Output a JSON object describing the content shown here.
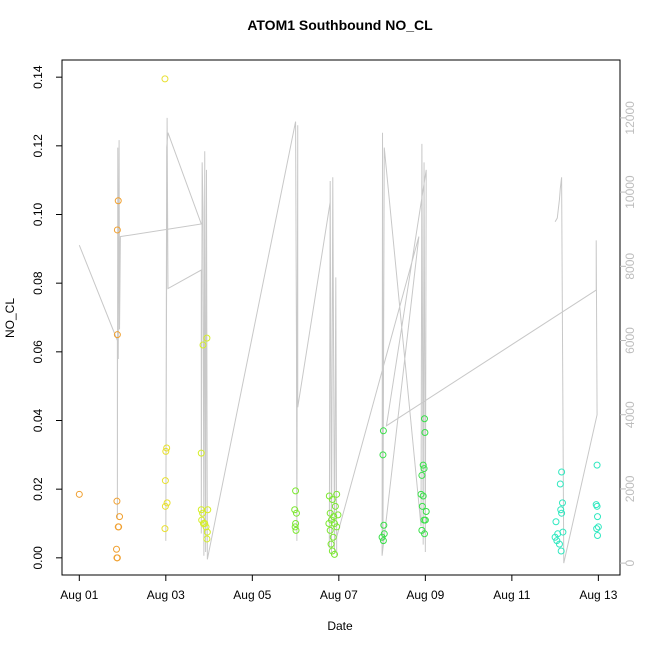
{
  "chart_data": {
    "type": "scatter",
    "title": "ATOM1 Southbound NO_CL",
    "x_label": "Date",
    "y_label": "NO_CL",
    "xlim": [
      0.6,
      13.5
    ],
    "xticks": [
      {
        "value": 1,
        "label": "Aug 01"
      },
      {
        "value": 3,
        "label": "Aug 03"
      },
      {
        "value": 5,
        "label": "Aug 05"
      },
      {
        "value": 7,
        "label": "Aug 07"
      },
      {
        "value": 9,
        "label": "Aug 09"
      },
      {
        "value": 11,
        "label": "Aug 11"
      },
      {
        "value": 13,
        "label": "Aug 13"
      }
    ],
    "ylim": [
      -0.005,
      0.145
    ],
    "yticks": [
      {
        "value": 0,
        "label": "0.00"
      },
      {
        "value": 0.02,
        "label": "0.02"
      },
      {
        "value": 0.04,
        "label": "0.04"
      },
      {
        "value": 0.06,
        "label": "0.06"
      },
      {
        "value": 0.08,
        "label": "0.08"
      },
      {
        "value": 0.1,
        "label": "0.10"
      },
      {
        "value": 0.12,
        "label": "0.12"
      },
      {
        "value": 0.14,
        "label": "0.14"
      }
    ],
    "y2lim": [
      -320,
      13560
    ],
    "y2ticks": [
      0,
      2000,
      4000,
      6000,
      8000,
      10000,
      12000
    ],
    "y2_color": "#bdbdbd",
    "series": [
      {
        "type": "line",
        "axis": "y2",
        "color": "#c8c8c8",
        "x": [
          1.0,
          1.88,
          1.88,
          1.89,
          1.9,
          1.92,
          1.93,
          1.95,
          3.82,
          3.05,
          3.02,
          3.0,
          3.03,
          3.05,
          3.82,
          3.82,
          3.84,
          3.86,
          3.88,
          3.9,
          3.92,
          3.94,
          3.96,
          6.0,
          6.02,
          6.03,
          6.05,
          6.05,
          6.8,
          6.78,
          6.8,
          6.83,
          6.86,
          6.9,
          6.93,
          6.95,
          6.95,
          8.85,
          8.0,
          8.01,
          8.02,
          8.05,
          8.9,
          8.92,
          8.95,
          8.97,
          9.0,
          9.02,
          8.1,
          12.95,
          12.95,
          12.97,
          12.2,
          12.15,
          12.12,
          12.1,
          12.05,
          12.0
        ],
        "values": [
          8570,
          6000,
          1200,
          11200,
          5500,
          11400,
          6300,
          8800,
          9140,
          11600,
          11200,
          600,
          12000,
          7400,
          7900,
          800,
          10800,
          9500,
          200,
          11100,
          300,
          10600,
          100,
          11900,
          6100,
          600,
          11800,
          4200,
          9730,
          400,
          10300,
          200,
          10400,
          300,
          7700,
          200,
          700,
          8800,
          200,
          11600,
          600,
          11200,
          1000,
          11300,
          500,
          10800,
          300,
          10600,
          3700,
          7360,
          8700,
          4000,
          0,
          10400,
          10100,
          9800,
          9300,
          9200
        ]
      },
      {
        "type": "points",
        "color": "#f0a030",
        "x": [
          1.0,
          1.88,
          1.9,
          1.88,
          1.87,
          1.86,
          1.87,
          1.88,
          1.9,
          1.91,
          1.93
        ],
        "values": [
          0.0185,
          0.0955,
          0.104,
          0.065,
          0.0165,
          0.0025,
          0.0,
          0.0,
          0.009,
          0.009,
          0.012
        ]
      },
      {
        "type": "points",
        "color": "#e8e030",
        "x": [
          2.98,
          3.02,
          3.0,
          2.99,
          3.03,
          2.99,
          2.98
        ],
        "values": [
          0.1395,
          0.032,
          0.031,
          0.0225,
          0.016,
          0.015,
          0.0085
        ]
      },
      {
        "type": "points",
        "color": "#d6ee28",
        "x": [
          3.95,
          3.86,
          3.82,
          3.82,
          3.85,
          3.83,
          3.87,
          3.9,
          3.93,
          3.96,
          3.95,
          3.97
        ],
        "values": [
          0.064,
          0.062,
          0.0305,
          0.014,
          0.013,
          0.011,
          0.01,
          0.01,
          0.009,
          0.0075,
          0.0055,
          0.014
        ]
      },
      {
        "type": "points",
        "color": "#7ce830",
        "x": [
          6.0,
          5.98,
          6.02,
          6.0,
          5.99,
          6.01,
          6.78,
          6.85,
          6.92,
          6.8,
          6.88,
          6.83,
          6.77,
          6.9,
          6.95,
          6.8,
          6.87,
          6.82,
          6.85,
          6.9,
          6.95,
          6.98
        ],
        "values": [
          0.0195,
          0.014,
          0.013,
          0.01,
          0.009,
          0.008,
          0.018,
          0.017,
          0.015,
          0.013,
          0.012,
          0.011,
          0.01,
          0.01,
          0.009,
          0.008,
          0.006,
          0.004,
          0.002,
          0.001,
          0.0185,
          0.0125
        ]
      },
      {
        "type": "points",
        "color": "#38e048",
        "x": [
          8.03,
          8.02,
          8.04,
          8.05,
          8.0,
          8.03,
          8.98,
          8.99,
          8.95,
          8.97,
          8.92,
          8.9,
          8.95,
          8.93,
          9.02,
          8.97,
          9.0,
          8.92,
          8.98
        ],
        "values": [
          0.037,
          0.03,
          0.0095,
          0.007,
          0.006,
          0.005,
          0.0405,
          0.0365,
          0.027,
          0.026,
          0.024,
          0.0185,
          0.018,
          0.015,
          0.0135,
          0.011,
          0.011,
          0.008,
          0.007
        ]
      },
      {
        "type": "points",
        "color": "#30e8c0",
        "x": [
          12.15,
          12.12,
          12.17,
          12.13,
          12.15,
          12.02,
          12.18,
          12.06,
          12.0,
          12.04,
          12.1,
          12.14,
          12.97,
          12.95,
          12.97,
          12.98,
          13.0,
          12.96,
          12.98
        ],
        "values": [
          0.025,
          0.0215,
          0.016,
          0.014,
          0.013,
          0.0105,
          0.0075,
          0.007,
          0.006,
          0.005,
          0.004,
          0.002,
          0.027,
          0.0155,
          0.015,
          0.012,
          0.009,
          0.0085,
          0.0065
        ]
      }
    ]
  }
}
